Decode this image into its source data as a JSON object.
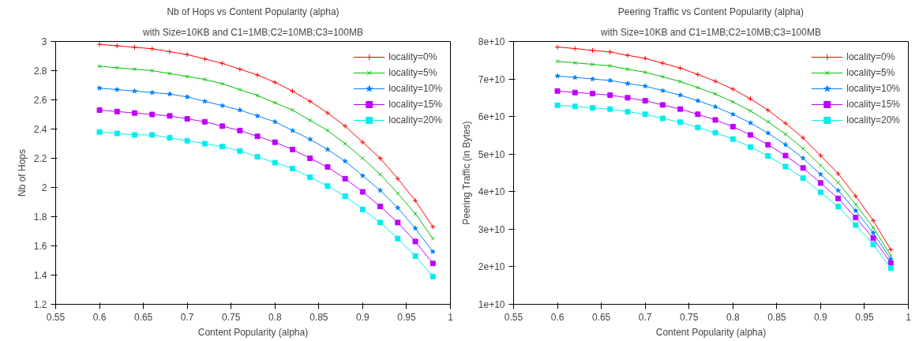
{
  "chart_data": [
    {
      "type": "line",
      "title": "Nb of Hops vs Content Popularity (alpha)",
      "subtitle": "with Size=10KB and C1=1MB;C2=10MB;C3=100MB",
      "xlabel": "Content Popularity (alpha)",
      "ylabel": "Nb of Hops",
      "x": [
        0.6,
        0.62,
        0.64,
        0.66,
        0.68,
        0.7,
        0.72,
        0.74,
        0.76,
        0.78,
        0.8,
        0.82,
        0.84,
        0.86,
        0.88,
        0.9,
        0.92,
        0.94,
        0.96,
        0.98
      ],
      "xlim": [
        0.55,
        1
      ],
      "xticks": [
        0.55,
        0.6,
        0.65,
        0.7,
        0.75,
        0.8,
        0.85,
        0.9,
        0.95,
        1
      ],
      "ylim": [
        1.2,
        3
      ],
      "yticks": [
        1.2,
        1.4,
        1.6,
        1.8,
        2,
        2.2,
        2.4,
        2.6,
        2.8,
        3
      ],
      "grid": false,
      "legend": "top right",
      "series": [
        {
          "name": "locality=0%",
          "color": "#ff0000",
          "marker": "cross",
          "values": [
            2.98,
            2.97,
            2.96,
            2.95,
            2.93,
            2.91,
            2.88,
            2.85,
            2.81,
            2.77,
            2.72,
            2.66,
            2.59,
            2.51,
            2.42,
            2.31,
            2.2,
            2.06,
            1.91,
            1.73
          ]
        },
        {
          "name": "locality=5%",
          "color": "#00c000",
          "marker": "x",
          "values": [
            2.83,
            2.82,
            2.81,
            2.8,
            2.78,
            2.76,
            2.74,
            2.71,
            2.67,
            2.63,
            2.58,
            2.53,
            2.46,
            2.39,
            2.3,
            2.2,
            2.09,
            1.96,
            1.82,
            1.65
          ]
        },
        {
          "name": "locality=10%",
          "color": "#0080ff",
          "marker": "star",
          "values": [
            2.68,
            2.67,
            2.66,
            2.65,
            2.64,
            2.62,
            2.59,
            2.56,
            2.53,
            2.49,
            2.45,
            2.39,
            2.33,
            2.26,
            2.18,
            2.08,
            1.98,
            1.86,
            1.72,
            1.56
          ]
        },
        {
          "name": "locality=15%",
          "color": "#c000ff",
          "marker": "square",
          "values": [
            2.53,
            2.52,
            2.51,
            2.5,
            2.49,
            2.47,
            2.45,
            2.42,
            2.39,
            2.35,
            2.31,
            2.26,
            2.2,
            2.14,
            2.06,
            1.97,
            1.87,
            1.76,
            1.63,
            1.48
          ]
        },
        {
          "name": "locality=20%",
          "color": "#00eeee",
          "marker": "square",
          "values": [
            2.38,
            2.37,
            2.36,
            2.36,
            2.34,
            2.32,
            2.3,
            2.28,
            2.25,
            2.21,
            2.17,
            2.13,
            2.07,
            2.01,
            1.94,
            1.85,
            1.76,
            1.65,
            1.53,
            1.39
          ]
        }
      ]
    },
    {
      "type": "line",
      "title": "Peering Traffic vs Content Popularity (alpha)",
      "subtitle": "with Size=10KB and C1=1MB;C2=10MB;C3=100MB",
      "xlabel": "Content Popularity (alpha)",
      "ylabel": "Peering Traffic (in Bytes)",
      "x": [
        0.6,
        0.62,
        0.64,
        0.66,
        0.68,
        0.7,
        0.72,
        0.74,
        0.76,
        0.78,
        0.8,
        0.82,
        0.84,
        0.86,
        0.88,
        0.9,
        0.92,
        0.94,
        0.96,
        0.98
      ],
      "xlim": [
        0.55,
        1
      ],
      "xticks": [
        0.55,
        0.6,
        0.65,
        0.7,
        0.75,
        0.8,
        0.85,
        0.9,
        0.95,
        1
      ],
      "ylim": [
        10000000000.0,
        80000000000.0
      ],
      "yticks": [
        {
          "value": 10000000000.0,
          "label": "1e+10"
        },
        {
          "value": 20000000000.0,
          "label": "2e+10"
        },
        {
          "value": 30000000000.0,
          "label": "3e+10"
        },
        {
          "value": 40000000000.0,
          "label": "4e+10"
        },
        {
          "value": 50000000000.0,
          "label": "5e+10"
        },
        {
          "value": 60000000000.0,
          "label": "6e+10"
        },
        {
          "value": 70000000000.0,
          "label": "7e+10"
        },
        {
          "value": 80000000000.0,
          "label": "8e+10"
        }
      ],
      "grid": false,
      "legend": "top right",
      "series": [
        {
          "name": "locality=0%",
          "color": "#ff0000",
          "marker": "cross",
          "values": [
            78500000000.0,
            78100000000.0,
            77600000000.0,
            77200000000.0,
            76300000000.0,
            75500000000.0,
            74200000000.0,
            72900000000.0,
            71200000000.0,
            69400000000.0,
            67300000000.0,
            64700000000.0,
            61700000000.0,
            58200000000.0,
            54300000000.0,
            49600000000.0,
            44800000000.0,
            38800000000.0,
            32300000000.0,
            24500000000.0
          ]
        },
        {
          "name": "locality=5%",
          "color": "#00c000",
          "marker": "x",
          "values": [
            74700000000.0,
            74300000000.0,
            73900000000.0,
            73500000000.0,
            72600000000.0,
            71800000000.0,
            70600000000.0,
            69300000000.0,
            67700000000.0,
            66000000000.0,
            63900000000.0,
            61500000000.0,
            58600000000.0,
            55300000000.0,
            51500000000.0,
            47000000000.0,
            42400000000.0,
            36600000000.0,
            30400000000.0,
            23000000000.0
          ]
        },
        {
          "name": "locality=10%",
          "color": "#0080ff",
          "marker": "star",
          "values": [
            70800000000.0,
            70400000000.0,
            70000000000.0,
            69600000000.0,
            68800000000.0,
            68100000000.0,
            66900000000.0,
            65700000000.0,
            64200000000.0,
            62600000000.0,
            60600000000.0,
            58300000000.0,
            55600000000.0,
            52500000000.0,
            48900000000.0,
            44600000000.0,
            40300000000.0,
            34900000000.0,
            29000000000.0,
            22000000000.0
          ]
        },
        {
          "name": "locality=15%",
          "color": "#c000ff",
          "marker": "square",
          "values": [
            66800000000.0,
            66400000000.0,
            66100000000.0,
            65700000000.0,
            65000000000.0,
            64200000000.0,
            63100000000.0,
            62000000000.0,
            60600000000.0,
            59100000000.0,
            57300000000.0,
            55100000000.0,
            52500000000.0,
            49600000000.0,
            46300000000.0,
            42300000000.0,
            38200000000.0,
            33100000000.0,
            27600000000.0,
            21000000000.0
          ]
        },
        {
          "name": "locality=20%",
          "color": "#00eeee",
          "marker": "square",
          "values": [
            63000000000.0,
            62700000000.0,
            62300000000.0,
            62000000000.0,
            61300000000.0,
            60600000000.0,
            59500000000.0,
            58500000000.0,
            57100000000.0,
            55700000000.0,
            54000000000.0,
            51900000000.0,
            49500000000.0,
            46700000000.0,
            43600000000.0,
            39800000000.0,
            36000000000.0,
            31100000000.0,
            25900000000.0,
            19700000000.0
          ]
        }
      ]
    }
  ]
}
